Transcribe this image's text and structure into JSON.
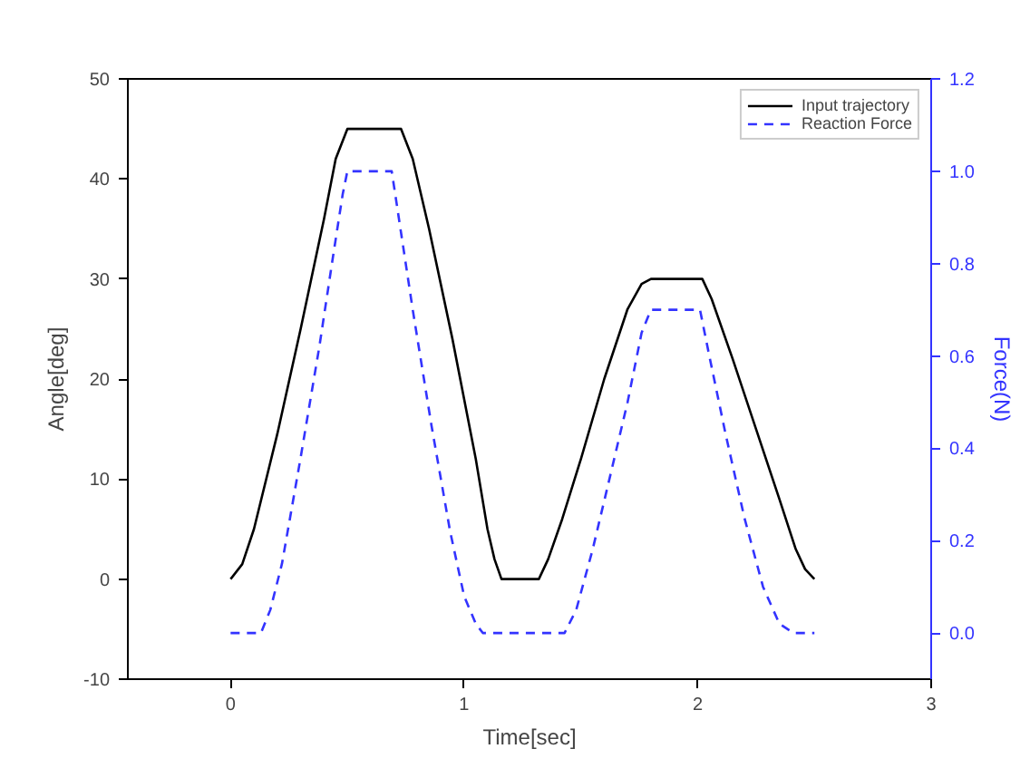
{
  "chart_data": {
    "type": "line",
    "xlabel": "Time[sec]",
    "ylabel": "Angle[deg]",
    "y2label": "Force(N)",
    "xlim": [
      -0.44,
      3
    ],
    "xticks": [
      0,
      1,
      2,
      3
    ],
    "ylim": [
      -10,
      50
    ],
    "yticks": [
      -10,
      0,
      10,
      20,
      30,
      40,
      50
    ],
    "y2lim": [
      -0.1,
      1.2
    ],
    "y2ticks": [
      {
        "value": 0,
        "label": "0.0"
      },
      0.2,
      0.4,
      0.6,
      0.8,
      {
        "value": 1,
        "label": "1.0"
      },
      1.2
    ],
    "grid": false,
    "legend": "top right",
    "marker": "none",
    "series": [
      {
        "name": "Input trajectory",
        "color": "#000000",
        "line_style": "solid",
        "x": [
          0,
          0.05,
          0.1,
          0.2,
          0.3,
          0.4,
          0.45,
          0.5,
          0.73,
          0.78,
          0.85,
          0.95,
          1.05,
          1.1,
          1.13,
          1.16,
          1.32,
          1.36,
          1.42,
          1.5,
          1.6,
          1.7,
          1.76,
          1.8,
          2.02,
          2.06,
          2.15,
          2.25,
          2.35,
          2.42,
          2.46,
          2.5
        ],
        "values": [
          0,
          1.5,
          5,
          14.5,
          25,
          36,
          42,
          45,
          45,
          42,
          35,
          24,
          12,
          5,
          2,
          0,
          0,
          2,
          6,
          12,
          20,
          27,
          29.5,
          30,
          30,
          28,
          22,
          15,
          8,
          3,
          1,
          0
        ]
      },
      {
        "name": "Reaction Force",
        "color": "#3333ff",
        "line_style": "dashed",
        "axis": "y2",
        "x": [
          0,
          0.13,
          0.17,
          0.22,
          0.3,
          0.38,
          0.44,
          0.48,
          0.5,
          0.69,
          0.72,
          0.78,
          0.86,
          0.94,
          1.0,
          1.05,
          1.08,
          1.43,
          1.48,
          1.55,
          1.63,
          1.7,
          1.76,
          1.8,
          2.01,
          2.05,
          2.12,
          2.2,
          2.28,
          2.35,
          2.41,
          2.5
        ],
        "values": [
          0,
          0,
          0.05,
          0.15,
          0.38,
          0.62,
          0.82,
          0.95,
          1.0,
          1.0,
          0.9,
          0.7,
          0.45,
          0.22,
          0.08,
          0.02,
          0,
          0,
          0.05,
          0.18,
          0.35,
          0.5,
          0.65,
          0.7,
          0.7,
          0.6,
          0.43,
          0.25,
          0.1,
          0.02,
          0,
          0
        ]
      }
    ]
  }
}
